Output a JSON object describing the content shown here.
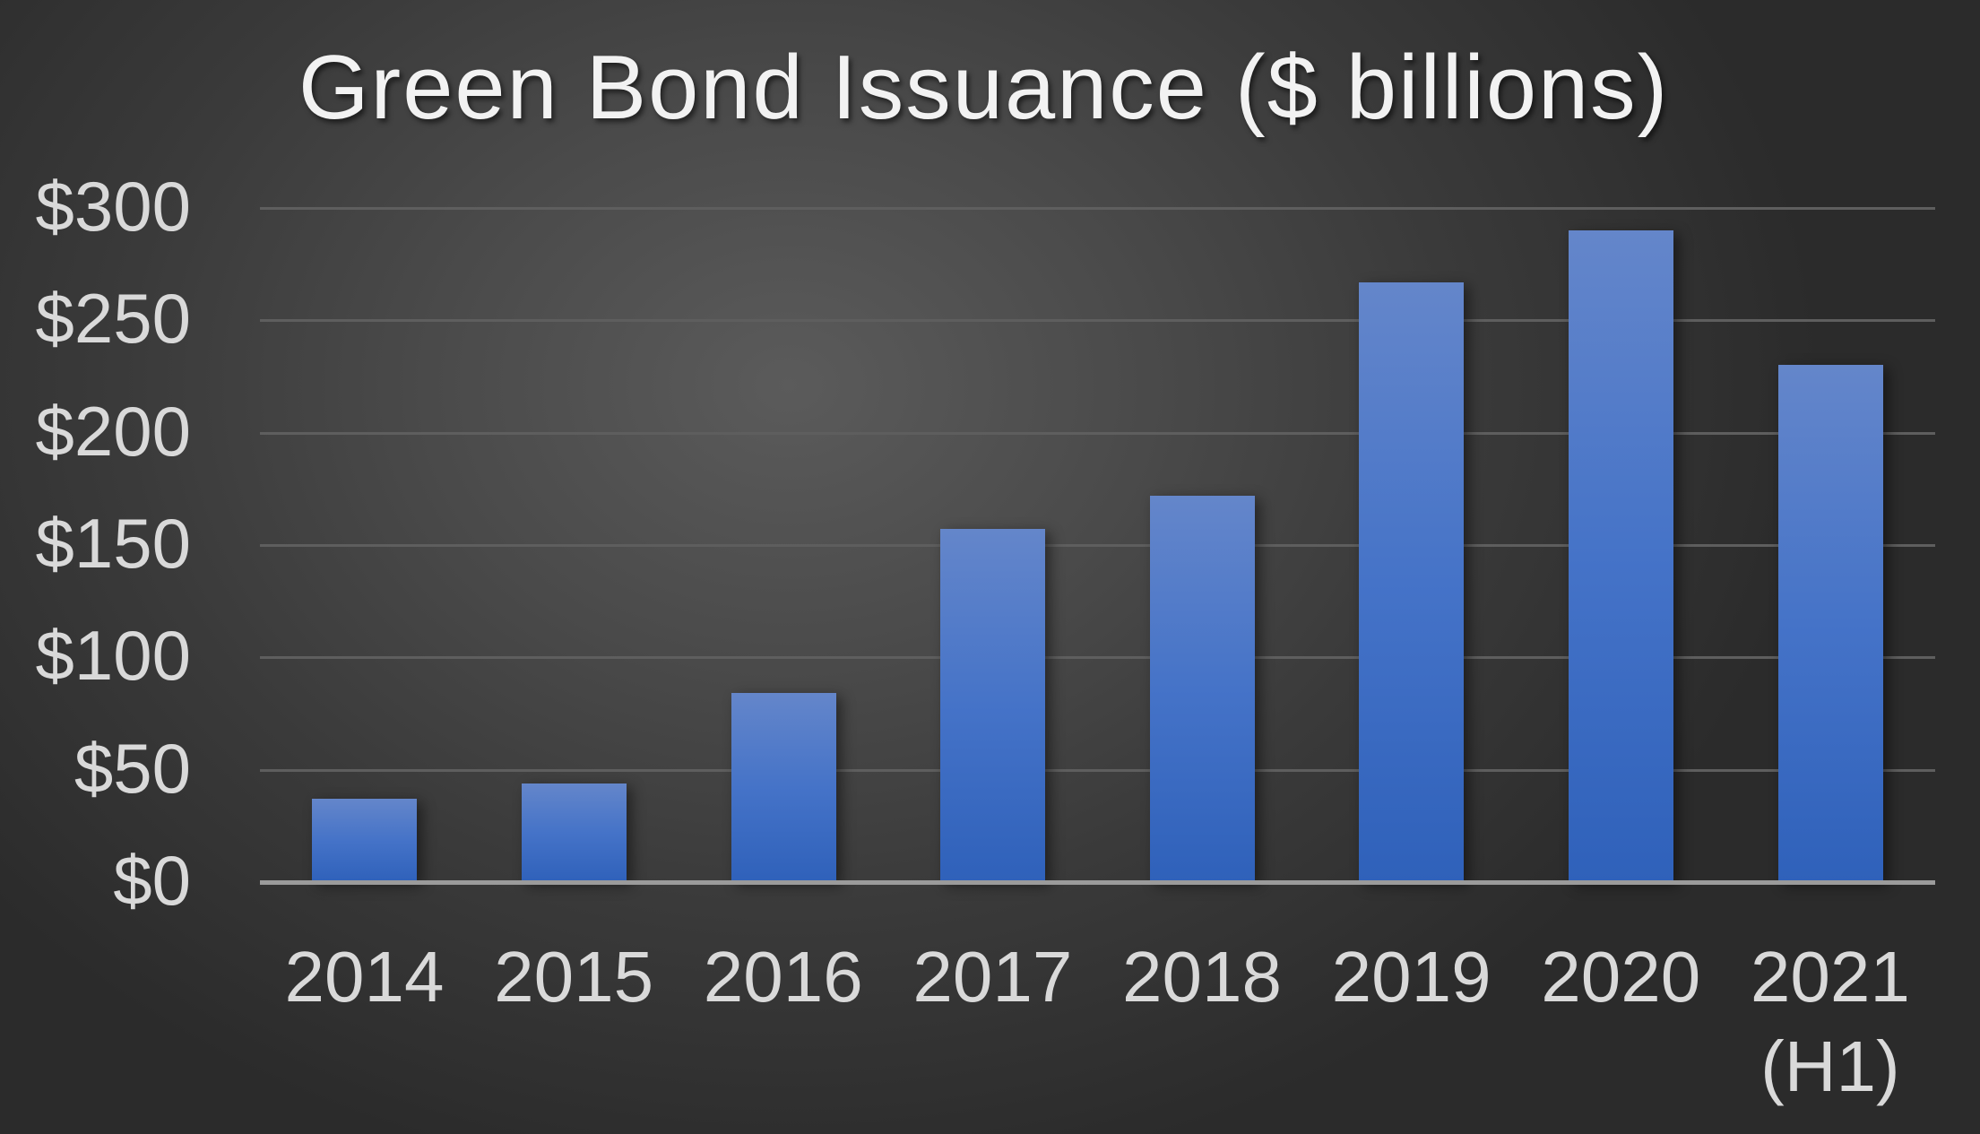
{
  "chart_data": {
    "type": "bar",
    "title": "Green Bond Issuance ($ billions)",
    "xlabel": "",
    "ylabel": "",
    "categories": [
      "2014",
      "2015",
      "2016",
      "2017",
      "2018",
      "2019",
      "2020",
      "2021\n(H1)"
    ],
    "values": [
      37,
      44,
      84,
      157,
      172,
      267,
      290,
      230
    ],
    "ylim": [
      0,
      300
    ],
    "yticks": [
      0,
      50,
      100,
      150,
      200,
      250,
      300
    ],
    "ytick_labels": [
      "$0",
      "$50",
      "$100",
      "$150",
      "$200",
      "$250",
      "$300"
    ],
    "grid": true,
    "legend": "none",
    "colors": {
      "bar_top": "#6486ca",
      "bar_bottom": "#2f61ba",
      "background_center": "#5b5b5b",
      "background_edge": "#2b2b2b",
      "gridline": "#5e5e5e",
      "axis_line": "#9b9b9b",
      "text": "#d9d9d9",
      "title_text": "#f2f2f2"
    }
  }
}
